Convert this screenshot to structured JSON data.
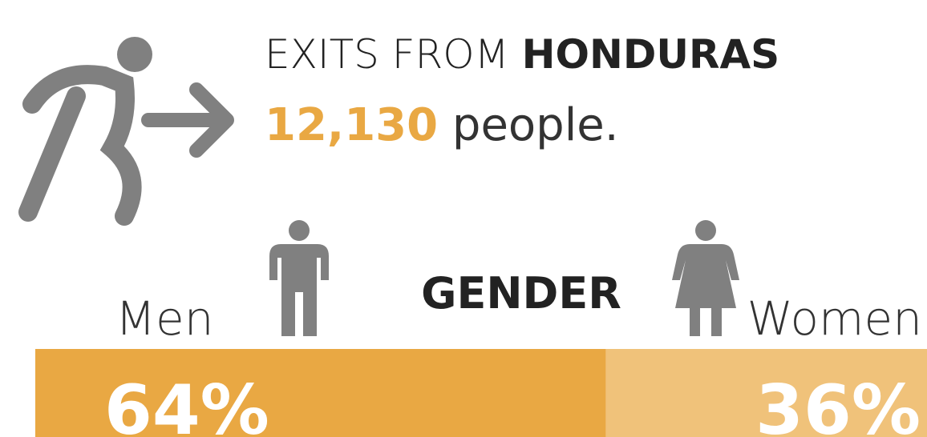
{
  "header": {
    "prefix": "EXITS FROM",
    "emphasis": "HONDURAS",
    "count": "12,130",
    "count_unit": "people."
  },
  "chart_data": {
    "type": "stacked-bar",
    "title": "GENDER",
    "categories": [
      "Men",
      "Women"
    ],
    "values": [
      64,
      36
    ],
    "value_labels": [
      "64%",
      "36%"
    ],
    "colors": [
      "#e9a843",
      "#f0c27a"
    ],
    "xlim": [
      0,
      100
    ]
  }
}
